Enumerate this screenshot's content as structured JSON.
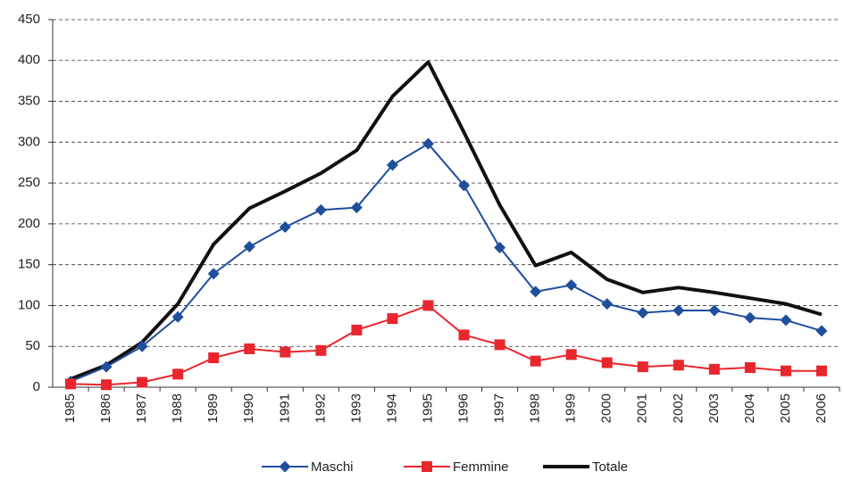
{
  "chart_data": {
    "type": "line",
    "categories": [
      "1985",
      "1986",
      "1987",
      "1988",
      "1989",
      "1990",
      "1991",
      "1992",
      "1993",
      "1994",
      "1995",
      "1996",
      "1997",
      "1998",
      "1999",
      "2000",
      "2001",
      "2002",
      "2003",
      "2004",
      "2005",
      "2006"
    ],
    "series": [
      {
        "name": "Maschi",
        "color": "#1f4e9c",
        "marker": "diamond",
        "values": [
          7,
          25,
          50,
          86,
          139,
          172,
          196,
          217,
          220,
          272,
          298,
          247,
          171,
          117,
          125,
          102,
          91,
          94,
          94,
          85,
          82,
          69
        ]
      },
      {
        "name": "Femmine",
        "color": "#e8262d",
        "marker": "square",
        "values": [
          4,
          3,
          6,
          16,
          36,
          47,
          43,
          45,
          70,
          84,
          100,
          64,
          52,
          32,
          40,
          30,
          25,
          27,
          22,
          24,
          20,
          20
        ]
      },
      {
        "name": "Totale",
        "color": "#111111",
        "marker": "none",
        "values": [
          10,
          27,
          55,
          102,
          175,
          219,
          240,
          262,
          290,
          356,
          398,
          312,
          223,
          149,
          165,
          132,
          116,
          122,
          116,
          109,
          102,
          89
        ]
      }
    ],
    "ylim": [
      0,
      450
    ],
    "yticks": [
      0,
      50,
      100,
      150,
      200,
      250,
      300,
      350,
      400,
      450
    ],
    "grid": true,
    "legend": "bottom"
  }
}
